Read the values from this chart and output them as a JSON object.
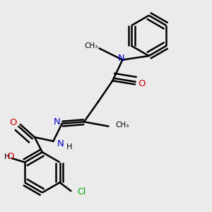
{
  "background_color": "#ebebeb",
  "atom_colors": {
    "C": "#000000",
    "N": "#0000cc",
    "O": "#cc0000",
    "Cl": "#00aa00",
    "H": "#000000"
  },
  "bond_color": "#000000",
  "bond_width": 1.8,
  "figsize": [
    3.0,
    3.0
  ],
  "dpi": 100
}
